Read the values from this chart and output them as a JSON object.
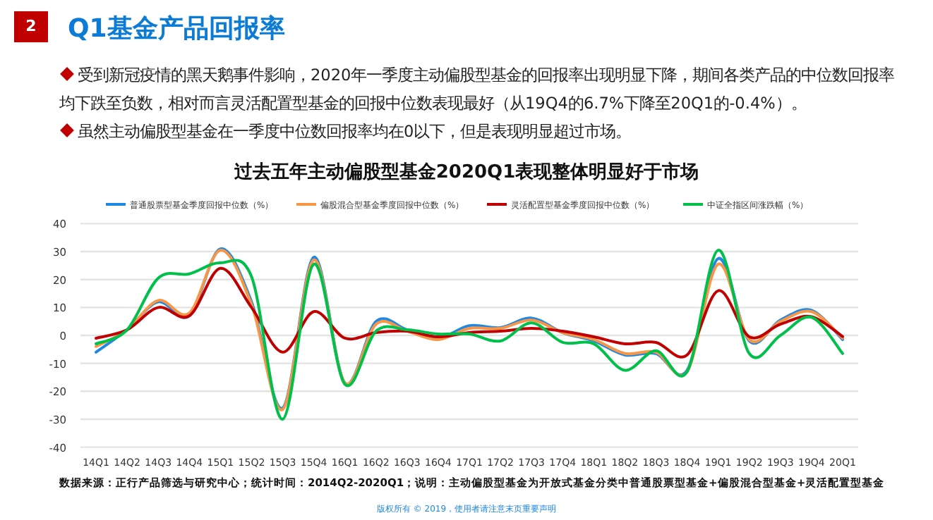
{
  "chart_data": {
    "type": "line",
    "title": "过去五年主动偏股型基金2020Q1表现整体明显好于市场",
    "categories": [
      "14Q1",
      "14Q2",
      "14Q3",
      "14Q4",
      "15Q1",
      "15Q2",
      "15Q3",
      "15Q4",
      "16Q1",
      "16Q2",
      "16Q3",
      "16Q4",
      "17Q1",
      "17Q2",
      "17Q3",
      "17Q4",
      "18Q1",
      "18Q2",
      "18Q3",
      "18Q4",
      "19Q1",
      "19Q2",
      "19Q3",
      "19Q4",
      "20Q1"
    ],
    "series": [
      {
        "name": "普通股票型基金季度回报中位数（%）",
        "color": "#1e88e5",
        "values": [
          -6,
          2,
          12,
          7,
          31,
          12,
          -26,
          28,
          -17,
          5,
          2,
          -1,
          3.5,
          2.8,
          6.2,
          1,
          -2,
          -7,
          -6.5,
          -12.5,
          27.5,
          -2,
          5.5,
          9,
          -1.5
        ]
      },
      {
        "name": "偏股混合型基金季度回报中位数（%）",
        "color": "#f79646",
        "values": [
          -4,
          2,
          12.5,
          8,
          30.5,
          11,
          -26.5,
          27,
          -17,
          4,
          1.5,
          -1.5,
          2.5,
          2.5,
          5.5,
          1,
          -1.5,
          -6.5,
          -6,
          -13,
          25.5,
          -1.5,
          5,
          8.5,
          -1
        ]
      },
      {
        "name": "灵活配置型基金季度回报中位数（%）",
        "color": "#c00000",
        "values": [
          -1,
          2,
          10,
          7,
          24,
          10,
          -6,
          8.5,
          -1,
          1,
          1.5,
          -0.5,
          1,
          1.5,
          2.5,
          1.5,
          -0.5,
          -3,
          -2.5,
          -7,
          16,
          -0.5,
          4,
          6.7,
          -0.4
        ]
      },
      {
        "name": "中证全指区间涨跌幅（%）",
        "color": "#00c04b",
        "values": [
          -3,
          2,
          20.5,
          22,
          26,
          21,
          -30,
          25.5,
          -17.5,
          1.5,
          2,
          0.5,
          0.5,
          -2,
          4.5,
          -2.5,
          -3,
          -12.5,
          -5.5,
          -13,
          30.5,
          -6.5,
          0,
          6.5,
          -6.5
        ]
      }
    ],
    "ylim": [
      -40,
      40
    ],
    "yticks": [
      -40,
      -30,
      -20,
      -10,
      0,
      10,
      20,
      30,
      40
    ],
    "grid": "y",
    "legend": "top",
    "marker": "none",
    "line_style": "solid",
    "annotations": [
      "2",
      "Q1基金产品回报率",
      "受到新冠疫情的黑天鹅事件影响，2020年一季度主动偏股型基金的回报率出现明显下降，期间各类产品的中位数回报率均下跌至负数，相对而言灵活配置型基金的回报中位数表现最好（从19Q4的6.7%下降至20Q1的-0.4%）。",
      "虽然主动偏股型基金在一季度中位数回报率均在0以下，但是表现明显超过市场。",
      "数据来源：正行产品筛选与研究中心；统计时间：2014Q2-2020Q1；说明：主动偏股型基金为开放式基金分类中普通股票型基金+偏股混合型基金+灵活配置型基金",
      "版权所有 © 2019，使用者请注意末页重要声明"
    ]
  }
}
